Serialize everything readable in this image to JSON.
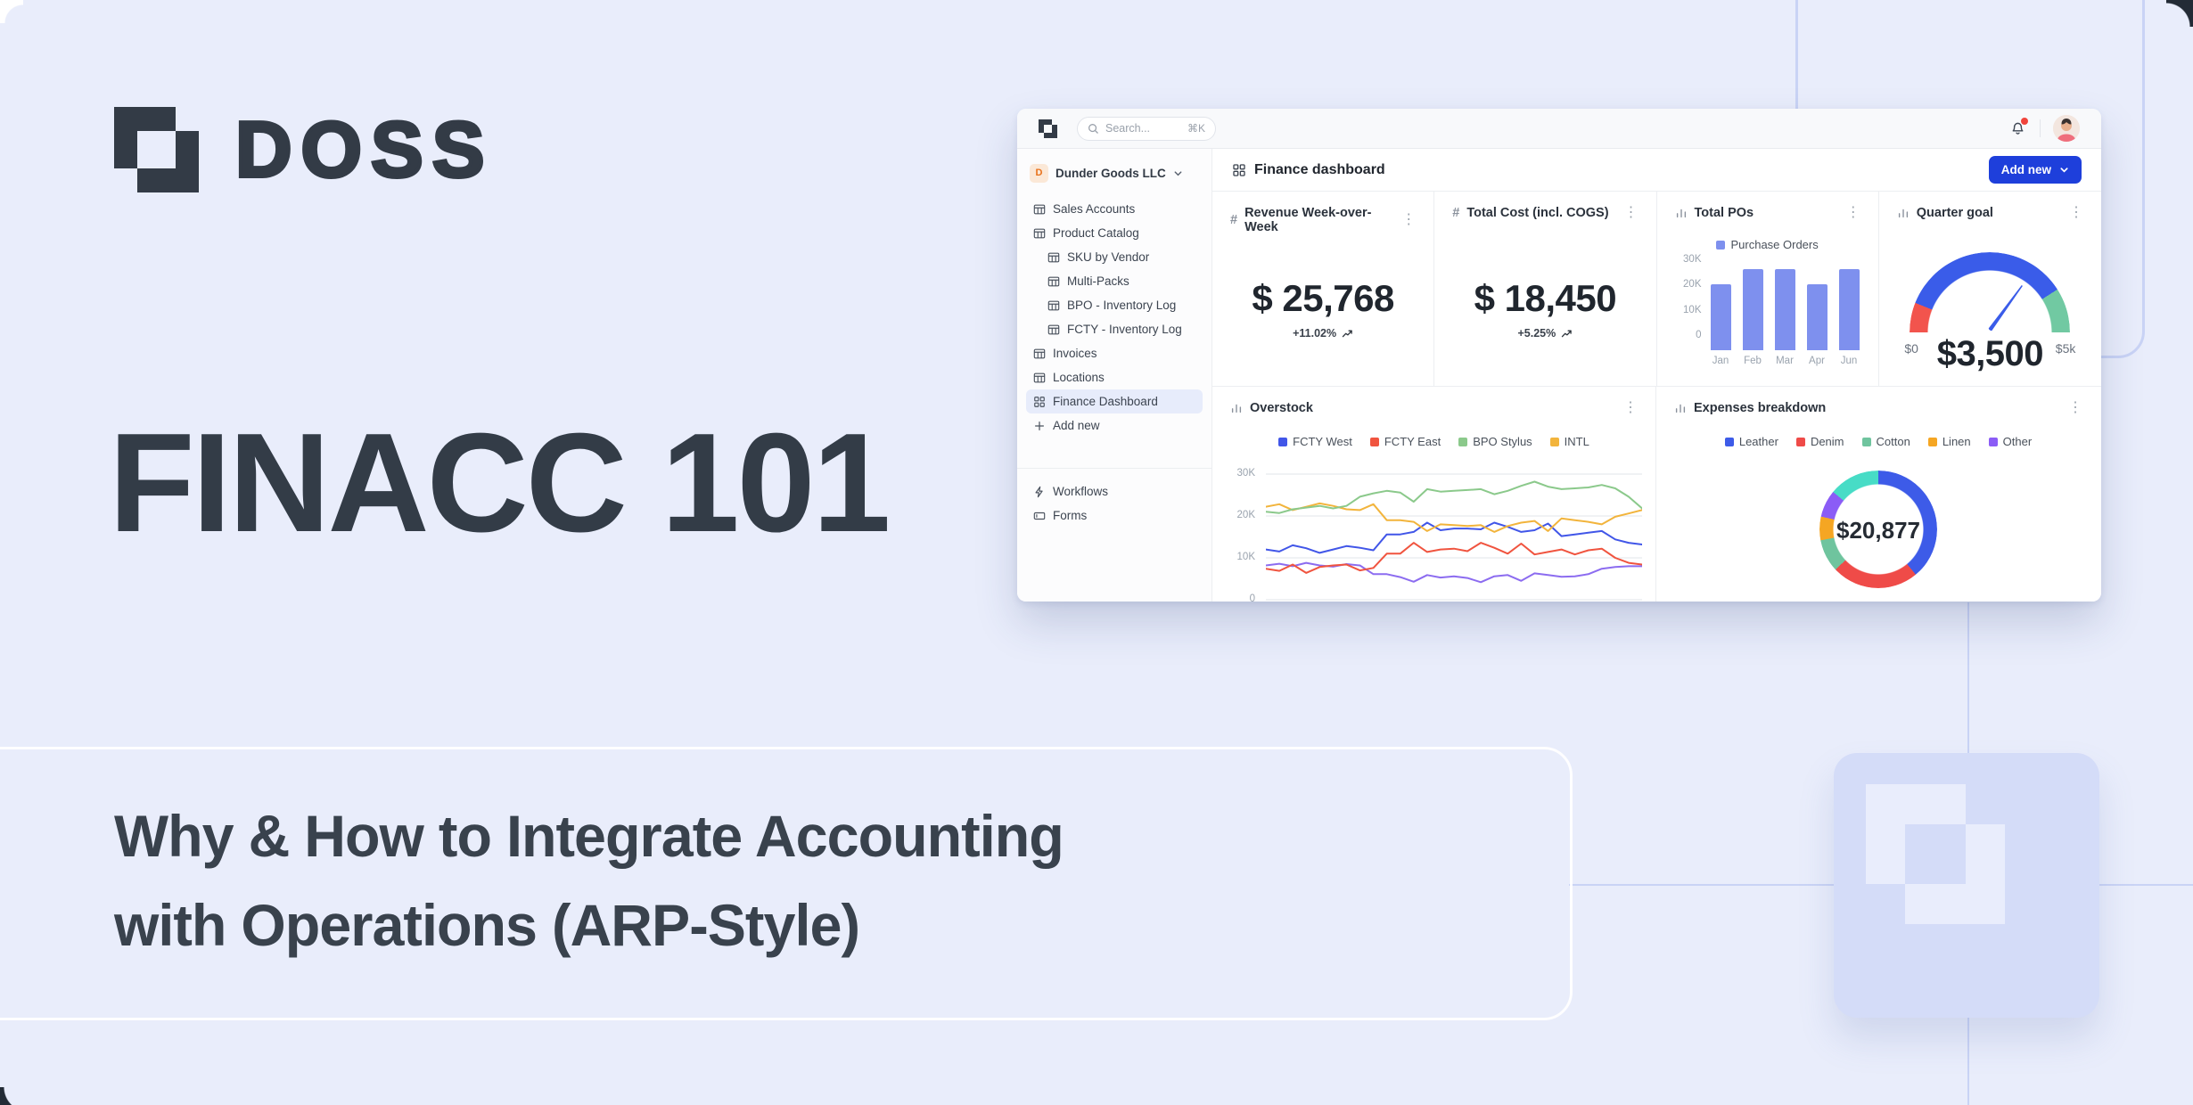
{
  "page": {
    "background": "#E9EDFB",
    "accent_blue": "#1E3FDB",
    "dark_slate": "#333C47"
  },
  "hero": {
    "brand": "DOSS",
    "title": "FINACC 101",
    "subtitle_line1": "Why & How to Integrate Accounting",
    "subtitle_line2": "with Operations (ARP-Style)"
  },
  "dashboard": {
    "topbar": {
      "search_placeholder": "Search...",
      "search_shortcut": "⌘K"
    },
    "sidebar": {
      "workspace": {
        "initial": "D",
        "name": "Dunder Goods LLC"
      },
      "items": [
        {
          "label": "Sales Accounts",
          "icon": "table"
        },
        {
          "label": "Product Catalog",
          "icon": "table"
        },
        {
          "label": "SKU by Vendor",
          "icon": "table",
          "sub": true
        },
        {
          "label": "Multi-Packs",
          "icon": "table",
          "sub": true
        },
        {
          "label": "BPO - Inventory Log",
          "icon": "table",
          "sub": true
        },
        {
          "label": "FCTY - Inventory Log",
          "icon": "table",
          "sub": true
        },
        {
          "label": "Invoices",
          "icon": "table"
        },
        {
          "label": "Locations",
          "icon": "table"
        },
        {
          "label": "Finance Dashboard",
          "icon": "grid",
          "active": true
        },
        {
          "label": "Add new",
          "icon": "plus"
        }
      ],
      "footer_items": [
        {
          "label": "Workflows",
          "icon": "zap"
        },
        {
          "label": "Forms",
          "icon": "form"
        }
      ]
    },
    "header": {
      "title": "Finance dashboard",
      "add_button": "Add new"
    },
    "cards": {
      "revenue": {
        "title": "Revenue Week-over-Week",
        "value": "$ 25,768",
        "delta": "+11.02%"
      },
      "total_cost": {
        "title": "Total Cost (incl. COGS)",
        "value": "$ 18,450",
        "delta": "+5.25%"
      }
    }
  },
  "chart_data": [
    {
      "id": "total_pos",
      "type": "bar",
      "title": "Total POs",
      "legend": [
        {
          "label": "Purchase Orders",
          "color": "#7E90EE"
        }
      ],
      "categories": [
        "Jan",
        "Feb",
        "Mar",
        "Apr",
        "Jun"
      ],
      "values": [
        26,
        32,
        32,
        26,
        32
      ],
      "unit": "thousands",
      "ymax": 33,
      "yticks": [
        {
          "label": "0",
          "v": 0
        },
        {
          "label": "10K",
          "v": 10
        },
        {
          "label": "20K",
          "v": 20
        },
        {
          "label": "30K",
          "v": 30
        }
      ],
      "bar_color": "#7E90EE"
    },
    {
      "id": "quarter_goal",
      "type": "gauge",
      "title": "Quarter goal",
      "min_label": "$0",
      "max_label": "$5k",
      "value_label": "$3,500",
      "value": 3500,
      "max": 5000,
      "segments": [
        {
          "color": "#F2544D",
          "to": 0.12
        },
        {
          "color": "#3A5CE9",
          "to": 0.82
        },
        {
          "color": "#71C9A2",
          "to": 1
        }
      ]
    },
    {
      "id": "overstock",
      "type": "line",
      "title": "Overstock",
      "unit": "thousands",
      "yticks": [
        {
          "label": "30K",
          "v": 30
        },
        {
          "label": "20K",
          "v": 20
        },
        {
          "label": "10K",
          "v": 10
        },
        {
          "label": "0",
          "v": 0
        }
      ],
      "series": [
        {
          "name": "",
          "color": "#8C6CF0",
          "in_legend": false,
          "values": [
            8.2,
            8.6,
            8,
            8.8,
            8.2,
            7.9,
            8.5,
            8.2,
            6.1,
            6.1,
            5.4,
            4.3,
            5.9,
            5.3,
            5.6,
            5.2,
            4.2,
            5.6,
            5.9,
            4.5,
            6.3,
            5.9,
            5.5,
            5.6,
            6.1,
            7.4,
            7.8,
            8,
            8
          ]
        },
        {
          "name": "FCTY East",
          "color": "#F0543F",
          "values": [
            7.4,
            6.9,
            8.4,
            6.4,
            7.8,
            8.2,
            8.4,
            7,
            7.6,
            11,
            11,
            13.6,
            11.4,
            12,
            12.2,
            11.6,
            13.6,
            12.4,
            11,
            13.4,
            10.8,
            11.4,
            12,
            10.8,
            11.8,
            12.2,
            10,
            8.8,
            8.4
          ]
        },
        {
          "name": "FCTY West",
          "color": "#4156E8",
          "values": [
            12,
            11.5,
            13,
            12.3,
            11.2,
            12,
            12.8,
            12.4,
            11.8,
            15.6,
            15.6,
            16.2,
            18.4,
            16.6,
            17,
            17,
            16.8,
            18.4,
            17.4,
            16.2,
            16.6,
            18.2,
            15.2,
            15.6,
            16,
            16.4,
            14.4,
            13.6,
            13.2
          ]
        },
        {
          "name": "INTL",
          "color": "#F2B43C",
          "values": [
            22.2,
            22.8,
            21.4,
            22.2,
            23,
            22.4,
            21.6,
            21.4,
            22.8,
            19,
            19,
            18.6,
            16.4,
            18,
            17.8,
            17.6,
            17.8,
            16.2,
            17.6,
            18.4,
            18.8,
            16.4,
            19.4,
            19,
            18.6,
            18,
            19.8,
            20.6,
            21.4
          ]
        },
        {
          "name": "BPO Stylus",
          "color": "#8BC98B",
          "values": [
            21,
            20.7,
            21.6,
            22,
            22.4,
            21.8,
            22.4,
            24.6,
            25.4,
            26,
            25.6,
            23.4,
            26.4,
            25.8,
            26,
            26.2,
            26.4,
            25.2,
            26,
            27.2,
            28.2,
            27,
            26.4,
            26.6,
            26.8,
            27.4,
            26.6,
            24.6,
            21.8
          ]
        }
      ],
      "legend_order": [
        "FCTY West",
        "FCTY East",
        "BPO Stylus",
        "INTL"
      ]
    },
    {
      "id": "expenses",
      "type": "pie",
      "title": "Expenses breakdown",
      "center_label": "$20,877",
      "legend": [
        {
          "label": "Leather",
          "color": "#3D5BE8"
        },
        {
          "label": "Denim",
          "color": "#EF4B48"
        },
        {
          "label": "Cotton",
          "color": "#6FC49E"
        },
        {
          "label": "Linen",
          "color": "#F5A623"
        },
        {
          "label": "Other",
          "color": "#8B5CF6"
        }
      ],
      "segments": [
        {
          "label": "Leather",
          "color": "#3D5BE8",
          "pct": 39
        },
        {
          "label": "Denim",
          "color": "#EF4B48",
          "pct": 24
        },
        {
          "label": "Cotton",
          "color": "#6FC49E",
          "pct": 9
        },
        {
          "label": "Linen",
          "color": "#F5A623",
          "pct": 6.5
        },
        {
          "label": "Other",
          "color": "#8B5CF6",
          "pct": 7.5
        },
        {
          "label": "Cotton",
          "color": "#47DCC6",
          "pct": 14
        }
      ]
    }
  ]
}
